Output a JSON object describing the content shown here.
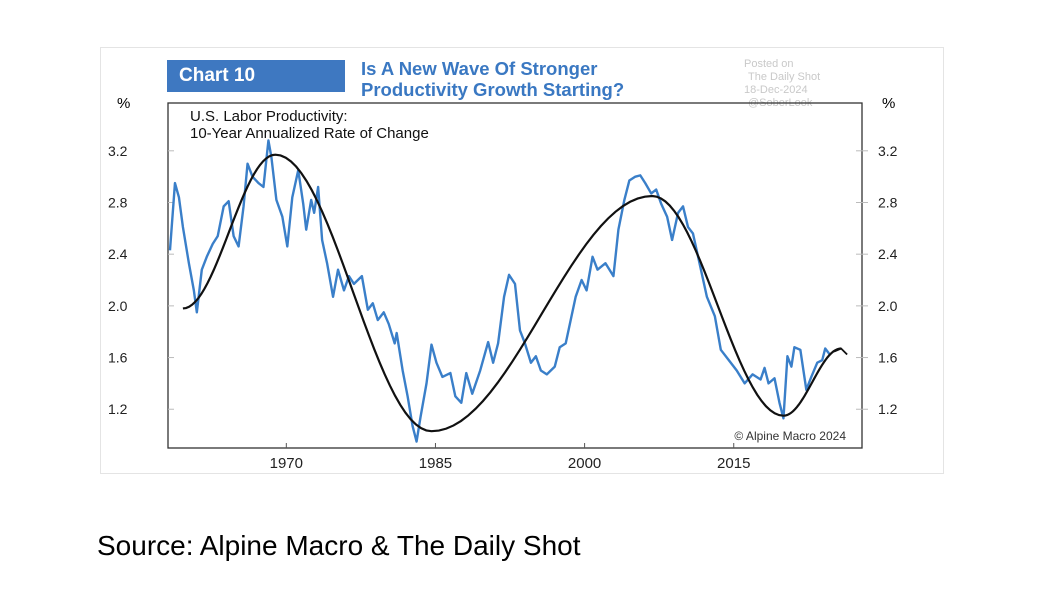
{
  "header": {
    "chart_label": "Chart 10",
    "title_line1": "Is A New Wave Of Stronger",
    "title_line2": "Productivity Growth Starting?",
    "watermark": [
      "Posted on",
      "The Daily Shot",
      "18-Dec-2024",
      "@SoberLook"
    ]
  },
  "source": "Source: Alpine Macro & The Daily Shot",
  "chart_data": {
    "type": "line",
    "title": "U.S. Labor Productivity:",
    "subtitle": "10-Year Annualized Rate of Change",
    "ylabel_left": "%",
    "ylabel_right": "%",
    "annotation": "© Alpine Macro 2024",
    "xlim": [
      1958.1,
      2027.9
    ],
    "ylim": [
      0.9,
      3.57
    ],
    "xticks": [
      1970,
      1985,
      2000,
      2015
    ],
    "xtick_labels": [
      "1970",
      "1985",
      "2000",
      "2015"
    ],
    "yticks": [
      1.2,
      1.6,
      2.0,
      2.4,
      2.8,
      3.2
    ],
    "ytick_labels": [
      "1.2",
      "1.6",
      "2.0",
      "2.4",
      "2.8",
      "3.2"
    ],
    "grid": false,
    "colors": {
      "actual": "#3a7fc9",
      "trend": "#111111",
      "title_box": "#3e78c1",
      "title_text": "#3a78c2"
    },
    "series": [
      {
        "x": [
          1958.3,
          1958.8,
          1959.2,
          1959.6,
          1960.2,
          1960.7,
          1961,
          1961.5,
          1962,
          1962.6,
          1963.1,
          1963.7,
          1964.2,
          1964.7,
          1965.2,
          1965.7,
          1966.1,
          1966.6,
          1967.2,
          1967.7,
          1968.2,
          1968.5,
          1969,
          1969.6,
          1970.1,
          1970.6,
          1971.2,
          1971.7,
          1972,
          1972.5,
          1972.8,
          1973.2,
          1973.6,
          1974.1,
          1974.7,
          1975.2,
          1975.8,
          1976.3,
          1976.8,
          1977.6,
          1978.2,
          1978.7,
          1979.2,
          1979.8,
          1980.3,
          1980.9,
          1981.1,
          1981.7,
          1982.2,
          1982.7,
          1983.1,
          1983.5,
          1984.1,
          1984.6,
          1985.1,
          1985.7,
          1986.5,
          1987,
          1987.6,
          1988.1,
          1988.7,
          1989.5,
          1990.3,
          1990.8,
          1991.3,
          1991.9,
          1992.4,
          1993,
          1993.5,
          1994,
          1994.6,
          1995.1,
          1995.6,
          1996.2,
          1997,
          1997.5,
          1998.1,
          1998.6,
          1999.1,
          1999.7,
          2000.2,
          2000.8,
          2001.3,
          2002.1,
          2002.9,
          2003.4,
          2004,
          2004.5,
          2005.1,
          2005.6,
          2006.1,
          2006.7,
          2007.2,
          2007.7,
          2008.3,
          2008.8,
          2009.4,
          2009.9,
          2010.4,
          2010.9,
          2011.5,
          2012.3,
          2013.1,
          2013.7,
          2014.5,
          2015.3,
          2016.1,
          2016.9,
          2017.7,
          2018.1,
          2018.5,
          2019.1,
          2019.6,
          2020,
          2020.4,
          2020.8,
          2021.1,
          2021.7,
          2022.3,
          2022.8,
          2023.4,
          2023.9,
          2024.2,
          2024.7
        ],
        "y": [
          2.43,
          2.95,
          2.84,
          2.61,
          2.33,
          2.12,
          1.95,
          2.28,
          2.38,
          2.48,
          2.54,
          2.77,
          2.81,
          2.54,
          2.46,
          2.77,
          3.1,
          3.0,
          2.95,
          2.92,
          3.28,
          3.15,
          2.82,
          2.69,
          2.46,
          2.84,
          3.05,
          2.79,
          2.59,
          2.82,
          2.72,
          2.92,
          2.51,
          2.33,
          2.07,
          2.28,
          2.12,
          2.23,
          2.17,
          2.23,
          1.97,
          2.02,
          1.89,
          1.95,
          1.86,
          1.71,
          1.79,
          1.5,
          1.3,
          1.07,
          0.95,
          1.14,
          1.4,
          1.7,
          1.56,
          1.45,
          1.48,
          1.3,
          1.25,
          1.48,
          1.32,
          1.5,
          1.72,
          1.56,
          1.71,
          2.07,
          2.24,
          2.17,
          1.81,
          1.71,
          1.56,
          1.61,
          1.5,
          1.47,
          1.53,
          1.68,
          1.71,
          1.89,
          2.07,
          2.2,
          2.12,
          2.38,
          2.28,
          2.33,
          2.23,
          2.59,
          2.82,
          2.97,
          3.0,
          3.01,
          2.95,
          2.87,
          2.9,
          2.79,
          2.69,
          2.51,
          2.72,
          2.77,
          2.61,
          2.56,
          2.35,
          2.07,
          1.92,
          1.66,
          1.58,
          1.5,
          1.4,
          1.47,
          1.43,
          1.52,
          1.4,
          1.44,
          1.25,
          1.13,
          1.61,
          1.53,
          1.68,
          1.66,
          1.35,
          1.45,
          1.56,
          1.58,
          1.67,
          1.62
        ]
      },
      {
        "x": [
          1959.6,
          1968.9,
          1984.6,
          2006.8,
          2020.0,
          2025.8
        ],
        "y": [
          1.98,
          3.17,
          1.03,
          2.85,
          1.15,
          1.67
        ]
      }
    ]
  }
}
